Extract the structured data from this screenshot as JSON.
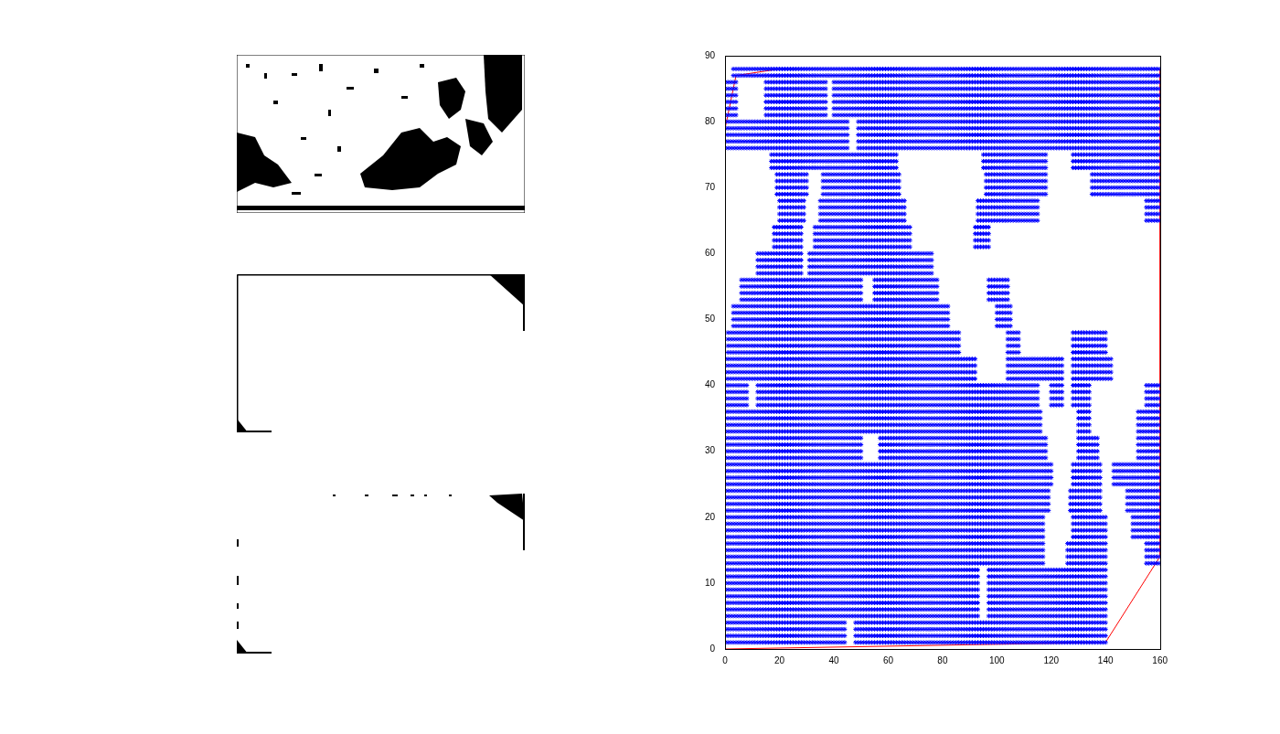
{
  "chart_data": {
    "type": "scatter",
    "xlim": [
      0,
      160
    ],
    "xticks": [
      0,
      20,
      40,
      60,
      80,
      100,
      120,
      140,
      160
    ],
    "ylim": [
      0,
      90
    ],
    "yticks": [
      0,
      10,
      20,
      30,
      40,
      50,
      60,
      70,
      80,
      90
    ],
    "grid": false,
    "series": [
      {
        "type": "scatter",
        "color": "#0000ff",
        "marker": "asterisk",
        "rows": [
          {
            "y": [
              87,
              88
            ],
            "x": [
              [
                3,
                160
              ]
            ]
          },
          {
            "y": [
              81,
              86
            ],
            "x": [
              [
                0,
                4
              ],
              [
                15,
                37
              ],
              [
                40,
                160
              ]
            ]
          },
          {
            "y": [
              76,
              80
            ],
            "x": [
              [
                0,
                45
              ],
              [
                49,
                160
              ]
            ]
          },
          {
            "y": [
              73,
              75
            ],
            "x": [
              [
                17,
                63
              ],
              [
                95,
                118
              ],
              [
                128,
                160
              ]
            ]
          },
          {
            "y": [
              69,
              72
            ],
            "x": [
              [
                19,
                30
              ],
              [
                36,
                64
              ],
              [
                96,
                118
              ],
              [
                135,
                160
              ]
            ]
          },
          {
            "y": [
              65,
              68
            ],
            "x": [
              [
                20,
                29
              ],
              [
                35,
                66
              ],
              [
                93,
                115
              ],
              [
                155,
                160
              ]
            ]
          },
          {
            "y": [
              61,
              64
            ],
            "x": [
              [
                18,
                28
              ],
              [
                33,
                68
              ],
              [
                92,
                97
              ]
            ]
          },
          {
            "y": [
              57,
              60
            ],
            "x": [
              [
                12,
                28
              ],
              [
                31,
                76
              ]
            ]
          },
          {
            "y": [
              53,
              56
            ],
            "x": [
              [
                6,
                50
              ],
              [
                55,
                78
              ],
              [
                97,
                104
              ]
            ]
          },
          {
            "y": [
              49,
              52
            ],
            "x": [
              [
                3,
                82
              ],
              [
                100,
                105
              ]
            ]
          },
          {
            "y": [
              45,
              48
            ],
            "x": [
              [
                1,
                86
              ],
              [
                104,
                108
              ],
              [
                128,
                140
              ]
            ]
          },
          {
            "y": [
              41,
              44
            ],
            "x": [
              [
                0,
                92
              ],
              [
                104,
                124
              ],
              [
                128,
                142
              ]
            ]
          },
          {
            "y": [
              37,
              40
            ],
            "x": [
              [
                0,
                8
              ],
              [
                12,
                115
              ],
              [
                120,
                124
              ],
              [
                128,
                134
              ],
              [
                155,
                160
              ]
            ]
          },
          {
            "y": [
              33,
              36
            ],
            "x": [
              [
                0,
                116
              ],
              [
                130,
                134
              ],
              [
                152,
                160
              ]
            ]
          },
          {
            "y": [
              29,
              32
            ],
            "x": [
              [
                0,
                50
              ],
              [
                57,
                118
              ],
              [
                130,
                137
              ],
              [
                152,
                160
              ]
            ]
          },
          {
            "y": [
              25,
              28
            ],
            "x": [
              [
                0,
                120
              ],
              [
                128,
                138
              ],
              [
                143,
                160
              ]
            ]
          },
          {
            "y": [
              21,
              24
            ],
            "x": [
              [
                0,
                119
              ],
              [
                127,
                138
              ],
              [
                148,
                160
              ]
            ]
          },
          {
            "y": [
              17,
              20
            ],
            "x": [
              [
                0,
                117
              ],
              [
                128,
                140
              ],
              [
                150,
                160
              ]
            ]
          },
          {
            "y": [
              13,
              16
            ],
            "x": [
              [
                0,
                117
              ],
              [
                126,
                140
              ],
              [
                155,
                160
              ]
            ]
          },
          {
            "y": [
              5,
              12
            ],
            "x": [
              [
                0,
                93
              ],
              [
                97,
                140
              ]
            ]
          },
          {
            "y": [
              1,
              4
            ],
            "x": [
              [
                0,
                44
              ],
              [
                48,
                140
              ]
            ]
          }
        ]
      },
      {
        "type": "line",
        "color": "#ff0000",
        "line_style": "solid",
        "x": [
          0,
          0,
          4,
          20,
          160,
          160,
          140,
          0
        ],
        "y": [
          0,
          79,
          87,
          88,
          88,
          14,
          1,
          0
        ]
      }
    ]
  }
}
